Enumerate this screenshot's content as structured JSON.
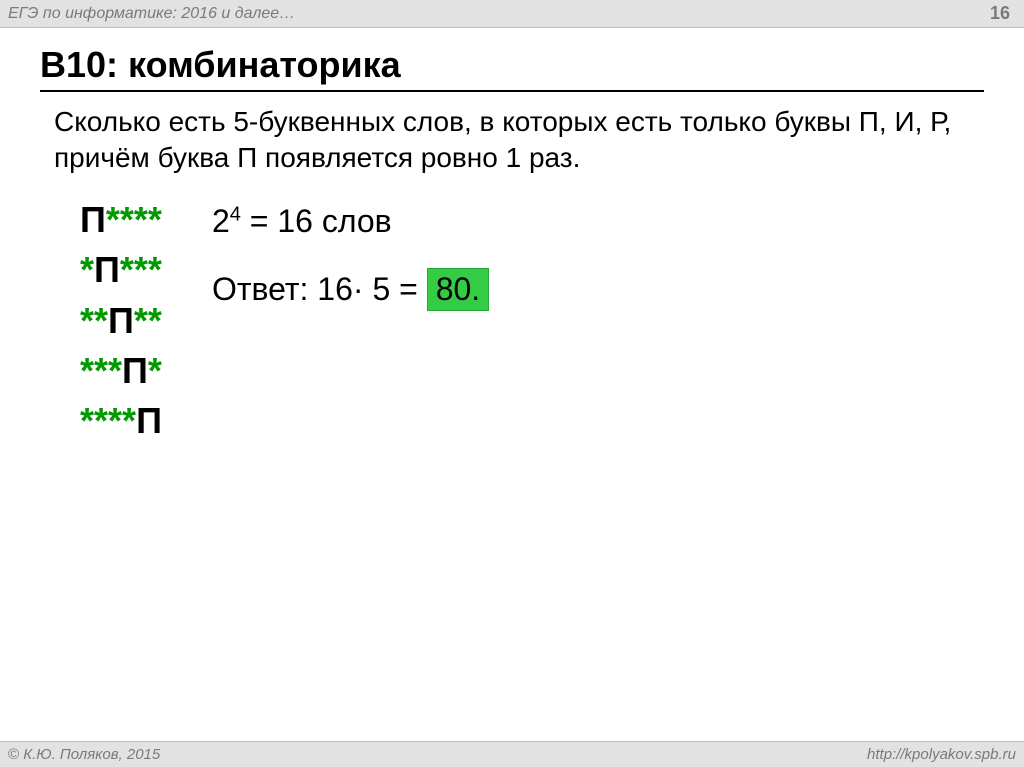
{
  "header": {
    "title": "ЕГЭ по информатике: 2016 и далее…",
    "page_number": "16"
  },
  "slide": {
    "title": "B10: комбинаторика",
    "question": "Сколько есть 5-буквенных слов, в которых есть только буквы П, И, Р, причём буква П появляется ровно 1 раз."
  },
  "patterns": [
    [
      {
        "t": "П",
        "k": "ltr"
      },
      {
        "t": "*",
        "k": "ast"
      },
      {
        "t": "*",
        "k": "ast"
      },
      {
        "t": "*",
        "k": "ast"
      },
      {
        "t": "*",
        "k": "ast"
      }
    ],
    [
      {
        "t": "*",
        "k": "ast"
      },
      {
        "t": "П",
        "k": "ltr"
      },
      {
        "t": "*",
        "k": "ast"
      },
      {
        "t": "*",
        "k": "ast"
      },
      {
        "t": "*",
        "k": "ast"
      }
    ],
    [
      {
        "t": "*",
        "k": "ast"
      },
      {
        "t": "*",
        "k": "ast"
      },
      {
        "t": "П",
        "k": "ltr"
      },
      {
        "t": "*",
        "k": "ast"
      },
      {
        "t": "*",
        "k": "ast"
      }
    ],
    [
      {
        "t": "*",
        "k": "ast"
      },
      {
        "t": "*",
        "k": "ast"
      },
      {
        "t": "*",
        "k": "ast"
      },
      {
        "t": "П",
        "k": "ltr"
      },
      {
        "t": "*",
        "k": "ast"
      }
    ],
    [
      {
        "t": "*",
        "k": "ast"
      },
      {
        "t": "*",
        "k": "ast"
      },
      {
        "t": "*",
        "k": "ast"
      },
      {
        "t": "*",
        "k": "ast"
      },
      {
        "t": "П",
        "k": "ltr"
      }
    ]
  ],
  "calc": {
    "base": "2",
    "exp": "4",
    "eq": " = 16 слов"
  },
  "answer": {
    "label": "Ответ: 16",
    "mid": "· 5 = ",
    "result": "80."
  },
  "footer": {
    "copyright": " К.Ю. Поляков, 2015",
    "url": "http://kpolyakov.spb.ru"
  },
  "colors": {
    "bar_bg": "#e2e2e2",
    "bar_border": "#bcbcbc",
    "muted_text": "#7a7a7a",
    "letter": "#000000",
    "asterisk": "#009900",
    "highlight_bg": "#33cc44",
    "highlight_border": "#28a838"
  }
}
